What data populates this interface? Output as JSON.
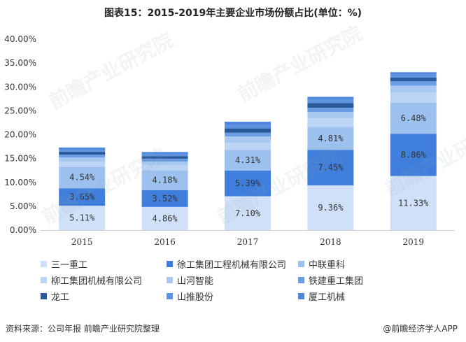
{
  "chart_data": {
    "type": "bar",
    "stacked": true,
    "title": "图表15：2015-2019年主要企业市场份额占比(单位：%)",
    "categories": [
      "2015",
      "2016",
      "2017",
      "2018",
      "2019"
    ],
    "ylim": [
      0,
      40
    ],
    "yticks": [
      "0.00%",
      "5.00%",
      "10.00%",
      "15.00%",
      "20.00%",
      "25.00%",
      "30.00%",
      "35.00%",
      "40.00%"
    ],
    "legend_position": "bottom",
    "grid": false,
    "series": [
      {
        "name": "三一重工",
        "color": "#cfe0f8",
        "values": [
          5.11,
          4.86,
          7.1,
          9.36,
          11.33
        ],
        "labels": [
          "5.11%",
          "4.86%",
          "7.10%",
          "9.36%",
          "11.33%"
        ]
      },
      {
        "name": "徐工集团工程机械有限公司",
        "color": "#3f7fdb",
        "values": [
          3.65,
          3.52,
          5.39,
          7.45,
          8.86
        ],
        "labels": [
          "3.65%",
          "3.52%",
          "5.39%",
          "7.45%",
          "8.86%"
        ]
      },
      {
        "name": "中联重科",
        "color": "#9dc1ef",
        "values": [
          4.54,
          4.18,
          4.31,
          4.81,
          6.48
        ],
        "labels": [
          "4.54%",
          "4.18%",
          "4.31%",
          "4.81%",
          "6.48%"
        ]
      },
      {
        "name": "柳工集团机械有限公司",
        "color": "#bdd5f5",
        "values": [
          1.0,
          1.0,
          1.5,
          1.8,
          2.2
        ],
        "labels": []
      },
      {
        "name": "山河智能",
        "color": "#a8c8f2",
        "values": [
          0.9,
          0.8,
          1.3,
          1.3,
          1.4
        ],
        "labels": []
      },
      {
        "name": "铁建重工集团",
        "color": "#6a9de3",
        "values": [
          0.6,
          0.6,
          0.8,
          0.9,
          0.9
        ],
        "labels": []
      },
      {
        "name": "龙工",
        "color": "#2a5a9a",
        "values": [
          0.6,
          0.5,
          0.9,
          1.0,
          0.8
        ],
        "labels": []
      },
      {
        "name": "山推股份",
        "color": "#5b93e0",
        "values": [
          0.4,
          0.5,
          0.7,
          0.8,
          0.6
        ],
        "labels": []
      },
      {
        "name": "厦工机械",
        "color": "#4d86dc",
        "values": [
          0.5,
          0.4,
          0.7,
          0.5,
          0.5
        ],
        "labels": []
      }
    ]
  },
  "legend": [
    {
      "label": "三一重工",
      "color": "#cfe0f8"
    },
    {
      "label": "徐工集团工程机械有限公司",
      "color": "#3f7fdb"
    },
    {
      "label": "中联重科",
      "color": "#9dc1ef"
    },
    {
      "label": "柳工集团机械有限公司",
      "color": "#bdd5f5"
    },
    {
      "label": "山河智能",
      "color": "#a8c8f2"
    },
    {
      "label": "铁建重工集团",
      "color": "#6a9de3"
    },
    {
      "label": "龙工",
      "color": "#2a5a9a"
    },
    {
      "label": "山推股份",
      "color": "#5b93e0"
    },
    {
      "label": "厦工机械",
      "color": "#4d86dc"
    }
  ],
  "footer": {
    "source": "资料来源：公司年报 前瞻产业研究院整理",
    "brand": "@前瞻经济学人APP"
  },
  "watermark": "前瞻产业研究院"
}
